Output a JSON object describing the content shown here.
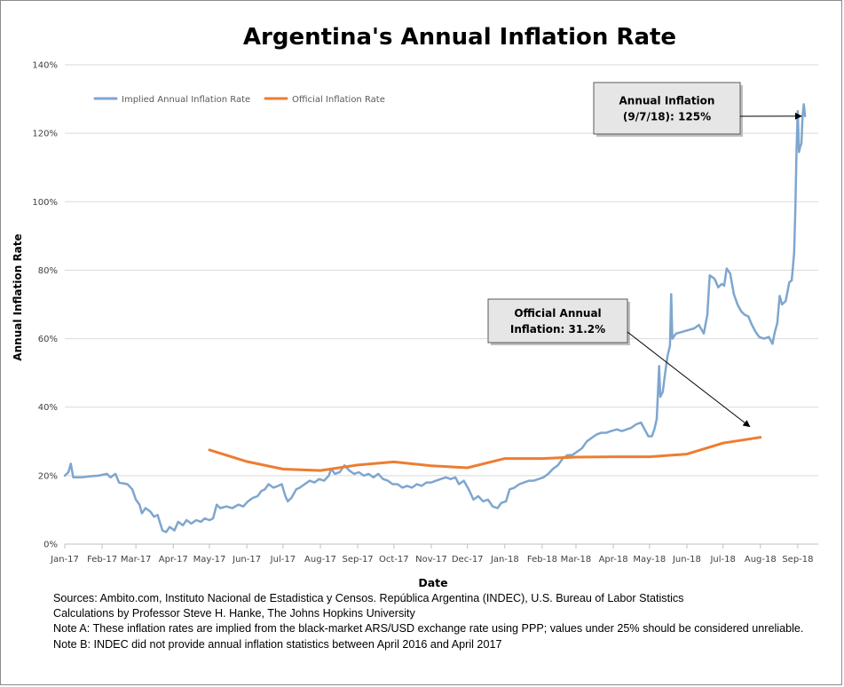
{
  "chart_data": {
    "type": "line",
    "title": "Argentina's Annual Inflation Rate",
    "xlabel": "Date",
    "ylabel": "Annual Inflation Rate",
    "ylim": [
      0,
      140
    ],
    "y_ticks": [
      0,
      20,
      40,
      60,
      80,
      100,
      120,
      140
    ],
    "y_tick_labels": [
      "0%",
      "20%",
      "40%",
      "60%",
      "80%",
      "100%",
      "120%",
      "140%"
    ],
    "x_range": [
      "2017-01-01",
      "2018-09-18"
    ],
    "x_ticks": [
      "2017-01-01",
      "2017-02-01",
      "2017-03-01",
      "2017-04-01",
      "2017-05-01",
      "2017-06-01",
      "2017-07-01",
      "2017-08-01",
      "2017-09-01",
      "2017-10-01",
      "2017-11-01",
      "2017-12-01",
      "2018-01-01",
      "2018-02-01",
      "2018-03-01",
      "2018-04-01",
      "2018-05-01",
      "2018-06-01",
      "2018-07-01",
      "2018-08-01",
      "2018-09-01"
    ],
    "x_tick_labels": [
      "Jan-17",
      "Feb-17",
      "Mar-17",
      "Apr-17",
      "May-17",
      "Jun-17",
      "Jul-17",
      "Aug-17",
      "Sep-17",
      "Oct-17",
      "Nov-17",
      "Dec-17",
      "Jan-18",
      "Feb-18",
      "Mar-18",
      "Apr-18",
      "May-18",
      "Jun-18",
      "Jul-18",
      "Aug-18",
      "Sep-18"
    ],
    "grid": "horizontal",
    "legend_position": "top-left",
    "series": [
      {
        "name": "Implied Annual Inflation Rate",
        "color": "#7ea6cf",
        "points": [
          [
            "2017-01-01",
            20
          ],
          [
            "2017-01-04",
            21
          ],
          [
            "2017-01-06",
            23.5
          ],
          [
            "2017-01-08",
            19.5
          ],
          [
            "2017-01-15",
            19.5
          ],
          [
            "2017-01-22",
            19.8
          ],
          [
            "2017-01-29",
            20
          ],
          [
            "2017-02-05",
            20.5
          ],
          [
            "2017-02-08",
            19.5
          ],
          [
            "2017-02-12",
            20.5
          ],
          [
            "2017-02-15",
            18
          ],
          [
            "2017-02-22",
            17.5
          ],
          [
            "2017-02-26",
            16
          ],
          [
            "2017-03-01",
            13
          ],
          [
            "2017-03-04",
            11.5
          ],
          [
            "2017-03-06",
            9
          ],
          [
            "2017-03-09",
            10.5
          ],
          [
            "2017-03-13",
            9.5
          ],
          [
            "2017-03-16",
            8
          ],
          [
            "2017-03-19",
            8.5
          ],
          [
            "2017-03-23",
            4
          ],
          [
            "2017-03-26",
            3.5
          ],
          [
            "2017-03-29",
            5
          ],
          [
            "2017-04-02",
            4
          ],
          [
            "2017-04-05",
            6.5
          ],
          [
            "2017-04-09",
            5.5
          ],
          [
            "2017-04-12",
            7
          ],
          [
            "2017-04-16",
            6
          ],
          [
            "2017-04-20",
            7
          ],
          [
            "2017-04-24",
            6.5
          ],
          [
            "2017-04-27",
            7.5
          ],
          [
            "2017-05-01",
            7
          ],
          [
            "2017-05-04",
            7.5
          ],
          [
            "2017-05-07",
            11.5
          ],
          [
            "2017-05-10",
            10.5
          ],
          [
            "2017-05-15",
            11
          ],
          [
            "2017-05-20",
            10.5
          ],
          [
            "2017-05-25",
            11.5
          ],
          [
            "2017-05-29",
            11
          ],
          [
            "2017-06-02",
            12.5
          ],
          [
            "2017-06-06",
            13.5
          ],
          [
            "2017-06-10",
            14
          ],
          [
            "2017-06-13",
            15.5
          ],
          [
            "2017-06-16",
            16
          ],
          [
            "2017-06-19",
            17.5
          ],
          [
            "2017-06-23",
            16.5
          ],
          [
            "2017-06-27",
            17
          ],
          [
            "2017-06-30",
            17.5
          ],
          [
            "2017-07-03",
            14
          ],
          [
            "2017-07-05",
            12.5
          ],
          [
            "2017-07-08",
            13.5
          ],
          [
            "2017-07-12",
            16
          ],
          [
            "2017-07-15",
            16.5
          ],
          [
            "2017-07-19",
            17.5
          ],
          [
            "2017-07-23",
            18.5
          ],
          [
            "2017-07-27",
            18
          ],
          [
            "2017-07-31",
            19
          ],
          [
            "2017-08-04",
            18.5
          ],
          [
            "2017-08-08",
            20
          ],
          [
            "2017-08-10",
            22
          ],
          [
            "2017-08-13",
            20.5
          ],
          [
            "2017-08-17",
            21
          ],
          [
            "2017-08-21",
            23
          ],
          [
            "2017-08-25",
            21.5
          ],
          [
            "2017-08-29",
            20.5
          ],
          [
            "2017-09-02",
            21
          ],
          [
            "2017-09-06",
            20
          ],
          [
            "2017-09-10",
            20.5
          ],
          [
            "2017-09-14",
            19.5
          ],
          [
            "2017-09-18",
            20.5
          ],
          [
            "2017-09-22",
            19
          ],
          [
            "2017-09-26",
            18.5
          ],
          [
            "2017-09-30",
            17.5
          ],
          [
            "2017-10-04",
            17.5
          ],
          [
            "2017-10-08",
            16.5
          ],
          [
            "2017-10-12",
            17
          ],
          [
            "2017-10-16",
            16.5
          ],
          [
            "2017-10-20",
            17.5
          ],
          [
            "2017-10-24",
            17
          ],
          [
            "2017-10-28",
            18
          ],
          [
            "2017-11-01",
            18
          ],
          [
            "2017-11-05",
            18.5
          ],
          [
            "2017-11-09",
            19
          ],
          [
            "2017-11-13",
            19.5
          ],
          [
            "2017-11-17",
            19
          ],
          [
            "2017-11-21",
            19.5
          ],
          [
            "2017-11-24",
            17.5
          ],
          [
            "2017-11-28",
            18.5
          ],
          [
            "2017-12-02",
            16
          ],
          [
            "2017-12-06",
            13
          ],
          [
            "2017-12-10",
            14
          ],
          [
            "2017-12-14",
            12.5
          ],
          [
            "2017-12-18",
            13
          ],
          [
            "2017-12-22",
            11
          ],
          [
            "2017-12-26",
            10.5
          ],
          [
            "2017-12-29",
            12
          ],
          [
            "2018-01-02",
            12.5
          ],
          [
            "2018-01-05",
            16
          ],
          [
            "2018-01-09",
            16.5
          ],
          [
            "2018-01-13",
            17.5
          ],
          [
            "2018-01-17",
            18
          ],
          [
            "2018-01-21",
            18.5
          ],
          [
            "2018-01-25",
            18.5
          ],
          [
            "2018-01-29",
            19
          ],
          [
            "2018-02-02",
            19.5
          ],
          [
            "2018-02-06",
            20.5
          ],
          [
            "2018-02-10",
            22
          ],
          [
            "2018-02-14",
            23
          ],
          [
            "2018-02-18",
            25
          ],
          [
            "2018-02-22",
            26
          ],
          [
            "2018-02-26",
            26
          ],
          [
            "2018-03-02",
            27
          ],
          [
            "2018-03-06",
            28
          ],
          [
            "2018-03-10",
            30
          ],
          [
            "2018-03-14",
            31
          ],
          [
            "2018-03-18",
            32
          ],
          [
            "2018-03-22",
            32.5
          ],
          [
            "2018-03-26",
            32.5
          ],
          [
            "2018-03-30",
            33
          ],
          [
            "2018-04-04",
            33.5
          ],
          [
            "2018-04-08",
            33
          ],
          [
            "2018-04-12",
            33.5
          ],
          [
            "2018-04-16",
            34
          ],
          [
            "2018-04-20",
            35
          ],
          [
            "2018-04-24",
            35.5
          ],
          [
            "2018-04-27",
            33.5
          ],
          [
            "2018-04-30",
            31.5
          ],
          [
            "2018-05-03",
            31.5
          ],
          [
            "2018-05-05",
            33.5
          ],
          [
            "2018-05-07",
            36.5
          ],
          [
            "2018-05-09",
            52
          ],
          [
            "2018-05-10",
            43
          ],
          [
            "2018-05-12",
            44.5
          ],
          [
            "2018-05-14",
            50
          ],
          [
            "2018-05-16",
            55
          ],
          [
            "2018-05-18",
            58
          ],
          [
            "2018-05-19",
            73
          ],
          [
            "2018-05-20",
            60
          ],
          [
            "2018-05-23",
            61.5
          ],
          [
            "2018-05-28",
            62
          ],
          [
            "2018-06-02",
            62.5
          ],
          [
            "2018-06-07",
            63
          ],
          [
            "2018-06-11",
            64
          ],
          [
            "2018-06-15",
            61.5
          ],
          [
            "2018-06-18",
            67
          ],
          [
            "2018-06-20",
            78.5
          ],
          [
            "2018-06-24",
            77.5
          ],
          [
            "2018-06-27",
            75
          ],
          [
            "2018-06-30",
            76
          ],
          [
            "2018-07-02",
            75.5
          ],
          [
            "2018-07-04",
            80.5
          ],
          [
            "2018-07-07",
            79
          ],
          [
            "2018-07-10",
            73
          ],
          [
            "2018-07-13",
            70
          ],
          [
            "2018-07-16",
            68
          ],
          [
            "2018-07-19",
            67
          ],
          [
            "2018-07-22",
            66.5
          ],
          [
            "2018-07-25",
            64
          ],
          [
            "2018-07-28",
            62
          ],
          [
            "2018-07-31",
            60.5
          ],
          [
            "2018-08-04",
            60
          ],
          [
            "2018-08-08",
            60.5
          ],
          [
            "2018-08-11",
            58.5
          ],
          [
            "2018-08-13",
            62
          ],
          [
            "2018-08-15",
            64.5
          ],
          [
            "2018-08-17",
            72.5
          ],
          [
            "2018-08-19",
            70
          ],
          [
            "2018-08-22",
            71
          ],
          [
            "2018-08-25",
            76.5
          ],
          [
            "2018-08-27",
            77
          ],
          [
            "2018-08-29",
            85
          ],
          [
            "2018-08-30",
            98
          ],
          [
            "2018-08-31",
            115
          ],
          [
            "2018-09-01",
            126.5
          ],
          [
            "2018-09-02",
            114.5
          ],
          [
            "2018-09-03",
            116
          ],
          [
            "2018-09-04",
            117
          ],
          [
            "2018-09-05",
            125
          ],
          [
            "2018-09-06",
            128.5
          ],
          [
            "2018-09-07",
            125
          ]
        ]
      },
      {
        "name": "Official Inflation Rate",
        "color": "#ed7d31",
        "points": [
          [
            "2017-05-01",
            27.5
          ],
          [
            "2017-06-01",
            24.1
          ],
          [
            "2017-07-01",
            21.9
          ],
          [
            "2017-08-01",
            21.5
          ],
          [
            "2017-09-01",
            23.1
          ],
          [
            "2017-10-01",
            24
          ],
          [
            "2017-11-01",
            22.9
          ],
          [
            "2017-12-01",
            22.3
          ],
          [
            "2018-01-01",
            25
          ],
          [
            "2018-02-01",
            25
          ],
          [
            "2018-03-01",
            25.4
          ],
          [
            "2018-04-01",
            25.5
          ],
          [
            "2018-05-01",
            25.5
          ],
          [
            "2018-06-01",
            26.3
          ],
          [
            "2018-07-01",
            29.5
          ],
          [
            "2018-08-01",
            31.2
          ]
        ]
      }
    ],
    "annotations": [
      {
        "id": "annual",
        "lines": [
          "Annual Inflation",
          "(9/7/18): 125%"
        ],
        "target": [
          "2018-09-07",
          125
        ]
      },
      {
        "id": "official",
        "lines": [
          "Official Annual",
          "Inflation: 31.2%"
        ],
        "target": [
          "2018-08-01",
          31.2
        ]
      }
    ]
  },
  "notes": [
    "Sources: Ambito.com, Instituto Nacional de Estadistica y Censos. República Argentina (INDEC), U.S. Bureau of Labor Statistics",
    "Calculations by Professor Steve H. Hanke, The Johns Hopkins University",
    "Note A: These inflation rates are implied from the black-market ARS/USD exchange rate using PPP; values under 25% should be considered unreliable.",
    "Note B: INDEC did not provide annual inflation statistics between April 2016 and April 2017"
  ]
}
